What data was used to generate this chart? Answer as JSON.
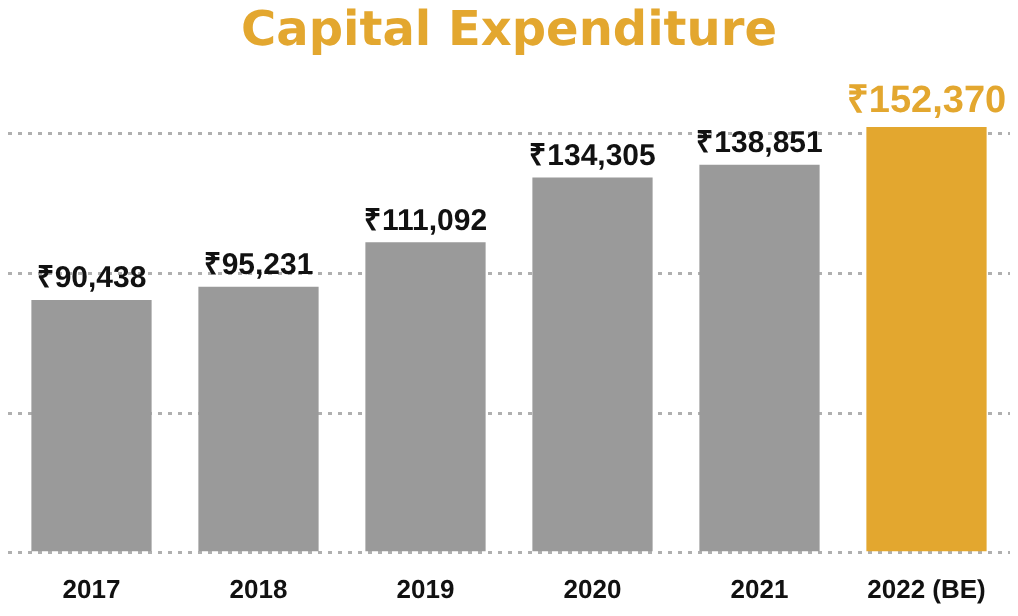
{
  "chart_data": {
    "type": "bar",
    "title": "Capital Expenditure",
    "categories": [
      "2017",
      "2018",
      "2019",
      "2020",
      "2021",
      "2022 (BE)"
    ],
    "values": [
      90438,
      95231,
      111092,
      134305,
      138851,
      152370
    ],
    "value_labels": [
      "₹90,438",
      "₹95,231",
      "₹111,092",
      "₹134,305",
      "₹138,851",
      "₹152,370"
    ],
    "colors": [
      "#9a9a9a",
      "#9a9a9a",
      "#9a9a9a",
      "#9a9a9a",
      "#9a9a9a",
      "#e3a72f"
    ],
    "yticks": [
      {
        "value": 0,
        "label": null
      },
      {
        "value": 50000,
        "label": null
      },
      {
        "value": 100000,
        "label": null
      },
      {
        "value": 150000,
        "label": null
      }
    ],
    "grid": "y",
    "tick_labels": "x",
    "legend": false
  }
}
